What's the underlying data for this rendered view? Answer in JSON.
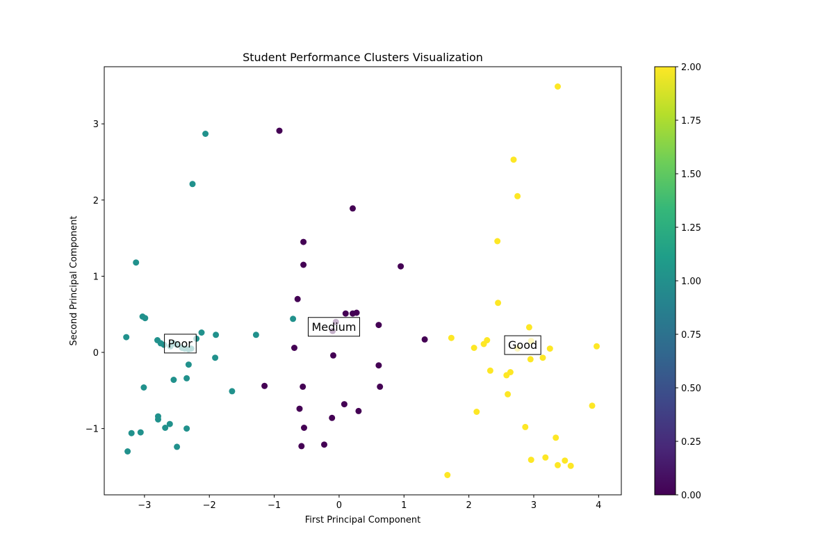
{
  "chart_data": {
    "type": "scatter",
    "title": "Student Performance Clusters Visualization",
    "xlabel": "First Principal Component",
    "ylabel": "Second Principal Component",
    "xlim": [
      -3.62,
      4.35
    ],
    "ylim": [
      -1.87,
      3.75
    ],
    "xticks": [
      -3,
      -2,
      -1,
      0,
      1,
      2,
      3,
      4
    ],
    "xtick_labels": [
      "−3",
      "−2",
      "−1",
      "0",
      "1",
      "2",
      "3",
      "4"
    ],
    "yticks": [
      -1,
      0,
      1,
      2,
      3
    ],
    "ytick_labels": [
      "−1",
      "0",
      "1",
      "2",
      "3"
    ],
    "grid": false,
    "colormap": "viridis",
    "colormap_stops": [
      "#440154",
      "#482878",
      "#3e4989",
      "#31688e",
      "#26828e",
      "#1f9e89",
      "#35b779",
      "#6ece58",
      "#b5de2b",
      "#fde725"
    ],
    "colorbar": {
      "range": [
        0,
        2
      ],
      "ticks": [
        0,
        0.25,
        0.5,
        0.75,
        1,
        1.25,
        1.5,
        1.75,
        2
      ],
      "tick_labels": [
        "0.00",
        "0.25",
        "0.50",
        "0.75",
        "1.00",
        "1.25",
        "1.50",
        "1.75",
        "2.00"
      ]
    },
    "annotations": [
      {
        "text": "Poor",
        "x": -2.45,
        "y": 0.12
      },
      {
        "text": "Medium",
        "x": -0.08,
        "y": 0.34
      },
      {
        "text": "Good",
        "x": 2.83,
        "y": 0.1
      }
    ],
    "series": [
      {
        "cluster": 1,
        "color": "#21918c",
        "points": [
          [
            -2.06,
            2.87
          ],
          [
            -2.26,
            2.21
          ],
          [
            -3.13,
            1.18
          ],
          [
            -3.03,
            0.47
          ],
          [
            -2.99,
            0.45
          ],
          [
            -0.71,
            0.44
          ],
          [
            -2.12,
            0.26
          ],
          [
            -1.9,
            0.23
          ],
          [
            -1.28,
            0.23
          ],
          [
            -3.28,
            0.2
          ],
          [
            -2.8,
            0.16
          ],
          [
            -2.75,
            0.12
          ],
          [
            -2.7,
            0.1
          ],
          [
            -2.6,
            0.08
          ],
          [
            -2.55,
            0.12
          ],
          [
            -2.5,
            0.1
          ],
          [
            -2.42,
            0.06
          ],
          [
            -2.38,
            0.05
          ],
          [
            -2.32,
            0.04
          ],
          [
            -2.28,
            0.05
          ],
          [
            -2.2,
            0.18
          ],
          [
            -1.91,
            -0.07
          ],
          [
            -2.32,
            -0.16
          ],
          [
            -2.35,
            -0.34
          ],
          [
            -2.55,
            -0.36
          ],
          [
            -3.01,
            -0.46
          ],
          [
            -1.65,
            -0.51
          ],
          [
            -2.79,
            -0.84
          ],
          [
            -2.79,
            -0.88
          ],
          [
            -2.61,
            -0.94
          ],
          [
            -2.68,
            -0.99
          ],
          [
            -2.35,
            -1.0
          ],
          [
            -3.2,
            -1.06
          ],
          [
            -3.06,
            -1.05
          ],
          [
            -2.5,
            -1.24
          ],
          [
            -3.26,
            -1.3
          ]
        ]
      },
      {
        "cluster": 0,
        "color": "#440154",
        "points": [
          [
            -0.92,
            2.91
          ],
          [
            0.21,
            1.89
          ],
          [
            -0.55,
            1.45
          ],
          [
            -0.55,
            1.15
          ],
          [
            0.95,
            1.13
          ],
          [
            -0.64,
            0.7
          ],
          [
            0.1,
            0.51
          ],
          [
            0.21,
            0.51
          ],
          [
            0.27,
            0.52
          ],
          [
            -0.05,
            0.4
          ],
          [
            -0.1,
            0.28
          ],
          [
            0.61,
            0.36
          ],
          [
            1.32,
            0.17
          ],
          [
            -0.69,
            0.06
          ],
          [
            -0.09,
            -0.04
          ],
          [
            0.61,
            -0.17
          ],
          [
            -1.15,
            -0.44
          ],
          [
            -0.56,
            -0.45
          ],
          [
            0.63,
            -0.45
          ],
          [
            -0.61,
            -0.74
          ],
          [
            0.08,
            -0.68
          ],
          [
            0.3,
            -0.77
          ],
          [
            -0.11,
            -0.86
          ],
          [
            -0.54,
            -0.99
          ],
          [
            -0.23,
            -1.21
          ],
          [
            -0.58,
            -1.23
          ]
        ]
      },
      {
        "cluster": 2,
        "color": "#fde725",
        "points": [
          [
            3.37,
            3.49
          ],
          [
            2.69,
            2.53
          ],
          [
            2.75,
            2.05
          ],
          [
            2.44,
            1.46
          ],
          [
            2.45,
            0.65
          ],
          [
            2.93,
            0.33
          ],
          [
            1.73,
            0.19
          ],
          [
            2.28,
            0.16
          ],
          [
            2.23,
            0.11
          ],
          [
            2.08,
            0.06
          ],
          [
            2.75,
            0.05
          ],
          [
            3.25,
            0.05
          ],
          [
            3.97,
            0.08
          ],
          [
            2.96,
            0.15
          ],
          [
            3.14,
            -0.07
          ],
          [
            2.95,
            -0.09
          ],
          [
            2.33,
            -0.24
          ],
          [
            2.64,
            -0.26
          ],
          [
            2.58,
            -0.3
          ],
          [
            2.6,
            -0.55
          ],
          [
            3.9,
            -0.7
          ],
          [
            2.12,
            -0.78
          ],
          [
            2.87,
            -0.98
          ],
          [
            3.34,
            -1.12
          ],
          [
            3.18,
            -1.38
          ],
          [
            2.96,
            -1.41
          ],
          [
            3.48,
            -1.42
          ],
          [
            3.37,
            -1.48
          ],
          [
            3.57,
            -1.49
          ],
          [
            1.67,
            -1.61
          ]
        ]
      }
    ]
  }
}
